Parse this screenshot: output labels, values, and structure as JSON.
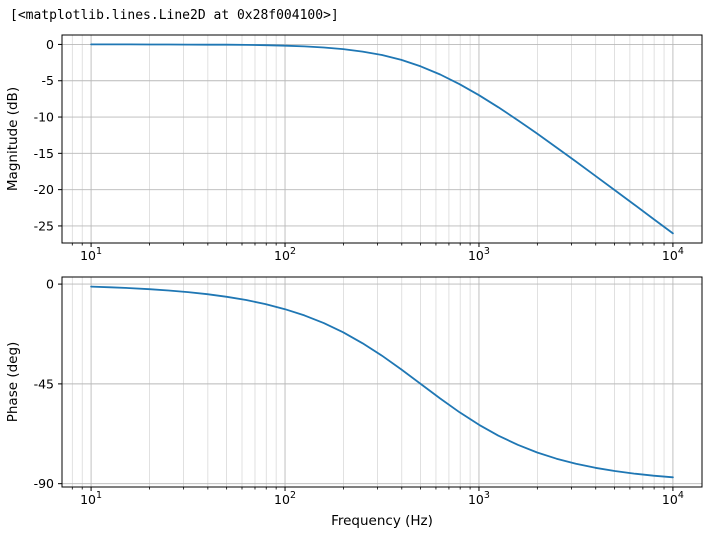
{
  "output_text": "[<matplotlib.lines.Line2D at 0x28f004100>]",
  "style": {
    "line_color": "#1f77b4",
    "major_grid": "#b9b9b9",
    "minor_grid": "#d4d4d4",
    "spine": "#000000",
    "background": "#ffffff"
  },
  "chart_data": [
    {
      "name": "magnitude",
      "type": "line",
      "xscale": "log",
      "title": "",
      "xlabel": "",
      "ylabel": "Magnitude (dB)",
      "xlim": [
        7.08,
        14125
      ],
      "ylim": [
        -27.35,
        1.3
      ],
      "xticks": [
        10,
        100,
        1000,
        10000
      ],
      "xtick_labels": [
        "10^1",
        "10^2",
        "10^3",
        "10^4"
      ],
      "yticks": [
        0,
        -5,
        -10,
        -15,
        -20,
        -25
      ],
      "grid": true,
      "legend": false,
      "series": [
        {
          "name": "magnitude-curve",
          "x": [
            10,
            12.6,
            15.8,
            20,
            25.1,
            31.6,
            39.8,
            50.1,
            63.1,
            79.4,
            100,
            125.9,
            158.5,
            199.5,
            251.2,
            316.2,
            398.1,
            501.2,
            631,
            794.3,
            1000,
            1258.9,
            1584.9,
            1995.3,
            2511.9,
            3162.3,
            3981.1,
            5011.9,
            6309.6,
            7943.3,
            10000
          ],
          "y": [
            0,
            0,
            0,
            -0.01,
            -0.01,
            -0.02,
            -0.03,
            -0.04,
            -0.07,
            -0.11,
            -0.17,
            -0.27,
            -0.42,
            -0.64,
            -0.98,
            -1.46,
            -2.13,
            -3.02,
            -4.14,
            -5.47,
            -6.99,
            -8.66,
            -10.43,
            -12.28,
            -14.19,
            -16.13,
            -18.09,
            -20.06,
            -22.05,
            -24.04,
            -26.03
          ]
        }
      ]
    },
    {
      "name": "phase",
      "type": "line",
      "xscale": "log",
      "title": "",
      "xlabel": "Frequency (Hz)",
      "ylabel": "Phase (deg)",
      "xlim": [
        7.08,
        14125
      ],
      "ylim": [
        -91.5,
        3.2
      ],
      "xticks": [
        10,
        100,
        1000,
        10000
      ],
      "xtick_labels": [
        "10^1",
        "10^2",
        "10^3",
        "10^4"
      ],
      "yticks": [
        0,
        -45,
        -90
      ],
      "grid": true,
      "legend": false,
      "series": [
        {
          "name": "phase-curve",
          "x": [
            10,
            12.6,
            15.8,
            20,
            25.1,
            31.6,
            39.8,
            50.1,
            63.1,
            79.4,
            100,
            125.9,
            158.5,
            199.5,
            251.2,
            316.2,
            398.1,
            501.2,
            631,
            794.3,
            1000,
            1258.9,
            1584.9,
            1995.3,
            2511.9,
            3162.3,
            3981.1,
            5011.9,
            6309.6,
            7943.3,
            10000
          ],
          "y": [
            -1.15,
            -1.44,
            -1.82,
            -2.29,
            -2.88,
            -3.62,
            -4.55,
            -5.73,
            -7.19,
            -9.03,
            -11.31,
            -14.13,
            -17.59,
            -21.76,
            -26.68,
            -32.31,
            -38.53,
            -45.07,
            -51.6,
            -57.81,
            -63.43,
            -68.35,
            -72.49,
            -75.93,
            -78.74,
            -81.01,
            -82.84,
            -84.3,
            -85.47,
            -86.4,
            -87.14
          ]
        }
      ]
    }
  ]
}
